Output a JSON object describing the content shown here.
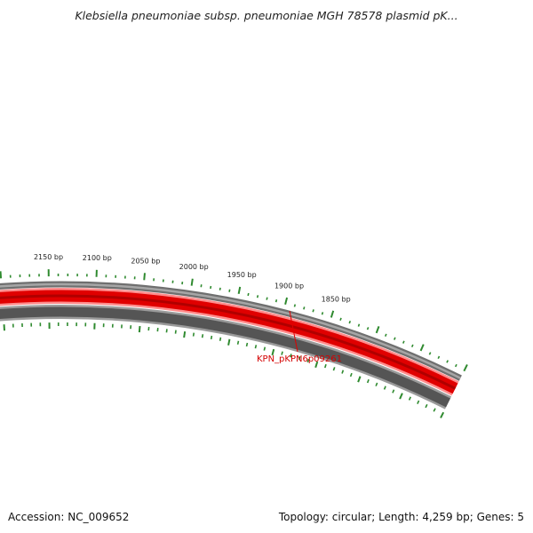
{
  "title": "Klebsiella pneumoniae subsp. pneumoniae MGH 78578 plasmid pK...",
  "footer": {
    "accession_label": "Accession: NC_009652",
    "summary_label": "Topology: circular; Length: 4,259 bp; Genes: 5"
  },
  "map": {
    "visible_range_bp": [
      1840,
      2170
    ],
    "tick_labels": [
      {
        "bp": 1850,
        "label": "1850 bp"
      },
      {
        "bp": 1900,
        "label": "1900 bp"
      },
      {
        "bp": 1950,
        "label": "1950 bp"
      },
      {
        "bp": 2000,
        "label": "2000 bp"
      },
      {
        "bp": 2050,
        "label": "2050 bp"
      },
      {
        "bp": 2100,
        "label": "2100 bp"
      },
      {
        "bp": 2150,
        "label": "2150 bp"
      }
    ],
    "genes": [
      {
        "label": "KPN_pKPN6p09261",
        "color": "#e00000"
      }
    ],
    "colors": {
      "gene_track": "#e00000",
      "backbone_track": "#555555",
      "outer_ring": "#808080",
      "ticks": "#2f8a2f"
    }
  }
}
